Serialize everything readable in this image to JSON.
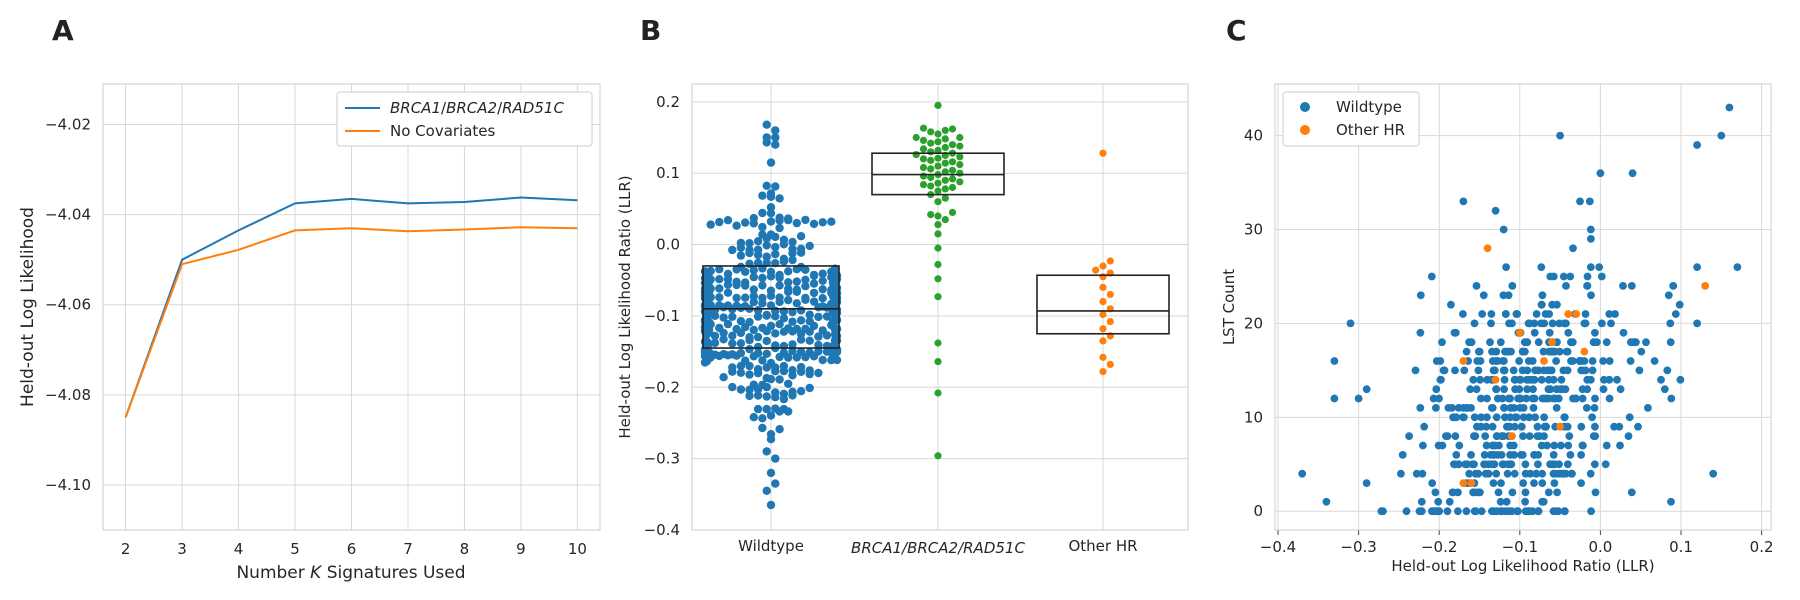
{
  "panels": {
    "a": "A",
    "b": "B",
    "c": "C"
  },
  "colors": {
    "blue": "#1f77b4",
    "orange": "#ff7f0e",
    "green": "#2ca02c"
  },
  "chart_data": [
    {
      "type": "line",
      "xlabel": "Number K Signatures Used",
      "ylabel": "Held-out Log Likelihood",
      "x": [
        2,
        3,
        4,
        5,
        6,
        7,
        8,
        9,
        10
      ],
      "xticks": [
        "2",
        "3",
        "4",
        "5",
        "6",
        "7",
        "8",
        "9",
        "10"
      ],
      "yticks": [
        "−4.02",
        "−4.04",
        "−4.06",
        "−4.08",
        "−4.10"
      ],
      "xlim": [
        1.6,
        10.4
      ],
      "ylim": [
        -4.11,
        -4.011
      ],
      "grid": true,
      "legend_position": "top-right",
      "series": [
        {
          "name": "BRCA1/BRCA2/RAD51C",
          "color": "#1f77b4",
          "values": [
            -4.085,
            -4.05,
            -4.0435,
            -4.0375,
            -4.0365,
            -4.0375,
            -4.0372,
            -4.0362,
            -4.0368
          ]
        },
        {
          "name": "No Covariates",
          "color": "#ff7f0e",
          "values": [
            -4.085,
            -4.051,
            -4.0478,
            -4.0435,
            -4.043,
            -4.0437,
            -4.0433,
            -4.0428,
            -4.043
          ]
        }
      ]
    },
    {
      "type": "scatter",
      "subtype": "swarm-with-boxplot",
      "ylabel": "Held-out Log Likelihood Ratio (LLR)",
      "categories": [
        "Wildtype",
        "BRCA1/BRCA2/RAD51C",
        "Other HR"
      ],
      "yticks": [
        "0.2",
        "0.1",
        "0.0",
        "−0.1",
        "−0.2",
        "−0.3",
        "−0.4"
      ],
      "ylim": [
        -0.4,
        0.225
      ],
      "grid": true,
      "groups": [
        {
          "name": "Wildtype",
          "color": "#1f77b4",
          "n": 430,
          "box": {
            "q1": -0.145,
            "median": -0.09,
            "q3": -0.03
          },
          "range": [
            -0.365,
            0.168
          ],
          "sample_points": [
            0.168,
            0.16,
            0.15,
            0.14,
            -0.3,
            -0.32,
            -0.335,
            -0.365
          ]
        },
        {
          "name": "BRCA1/BRCA2/RAD51C",
          "color": "#2ca02c",
          "box": {
            "q1": 0.07,
            "median": 0.098,
            "q3": 0.128
          },
          "points": [
            0.195,
            0.163,
            0.162,
            0.16,
            0.158,
            0.155,
            0.15,
            0.15,
            0.148,
            0.146,
            0.144,
            0.142,
            0.14,
            0.138,
            0.136,
            0.134,
            0.132,
            0.13,
            0.128,
            0.126,
            0.125,
            0.123,
            0.121,
            0.12,
            0.118,
            0.116,
            0.114,
            0.112,
            0.11,
            0.108,
            0.106,
            0.104,
            0.102,
            0.1,
            0.098,
            0.096,
            0.094,
            0.092,
            0.09,
            0.088,
            0.086,
            0.084,
            0.082,
            0.08,
            0.078,
            0.075,
            0.07,
            0.065,
            0.06,
            0.045,
            0.042,
            0.04,
            0.035,
            0.028,
            0.015,
            -0.005,
            -0.028,
            -0.048,
            -0.073,
            -0.138,
            -0.164,
            -0.208,
            -0.296
          ]
        },
        {
          "name": "Other HR",
          "color": "#ff7f0e",
          "box": {
            "q1": -0.125,
            "median": -0.093,
            "q3": -0.043
          },
          "points": [
            0.128,
            -0.023,
            -0.03,
            -0.036,
            -0.04,
            -0.045,
            -0.06,
            -0.07,
            -0.08,
            -0.09,
            -0.098,
            -0.108,
            -0.118,
            -0.128,
            -0.135,
            -0.158,
            -0.168,
            -0.178
          ]
        }
      ]
    },
    {
      "type": "scatter",
      "xlabel": "Held-out Log Likelihood Ratio (LLR)",
      "ylabel": "LST Count",
      "xticks": [
        "−0.4",
        "−0.3",
        "−0.2",
        "−0.1",
        "0.0",
        "0.1",
        "0.2"
      ],
      "yticks": [
        "0",
        "10",
        "20",
        "30",
        "40"
      ],
      "xlim": [
        -0.4,
        0.2
      ],
      "ylim": [
        -2,
        45.5
      ],
      "grid": true,
      "legend_position": "top-left",
      "series": [
        {
          "name": "Wildtype",
          "color": "#1f77b4",
          "n": 520,
          "sample_points": [
            [
              -0.37,
              4
            ],
            [
              -0.34,
              1
            ],
            [
              -0.33,
              16
            ],
            [
              -0.33,
              12
            ],
            [
              -0.31,
              20
            ],
            [
              -0.3,
              12
            ],
            [
              -0.05,
              40
            ],
            [
              0.16,
              43
            ],
            [
              0.15,
              40
            ],
            [
              0.12,
              39
            ],
            [
              0.14,
              4
            ],
            [
              0.17,
              26
            ],
            [
              -0.17,
              33
            ],
            [
              -0.13,
              32
            ],
            [
              0.0,
              36
            ],
            [
              0.04,
              36
            ]
          ]
        },
        {
          "name": "Other HR",
          "color": "#ff7f0e",
          "points": [
            [
              -0.14,
              28
            ],
            [
              0.13,
              24
            ],
            [
              -0.03,
              21
            ],
            [
              -0.04,
              21
            ],
            [
              -0.02,
              17
            ],
            [
              -0.1,
              19
            ],
            [
              -0.17,
              16
            ],
            [
              -0.13,
              14
            ],
            [
              -0.07,
              16
            ],
            [
              -0.06,
              18
            ],
            [
              -0.05,
              9
            ],
            [
              -0.11,
              8
            ],
            [
              -0.16,
              3
            ],
            [
              -0.17,
              3
            ]
          ]
        }
      ]
    }
  ]
}
